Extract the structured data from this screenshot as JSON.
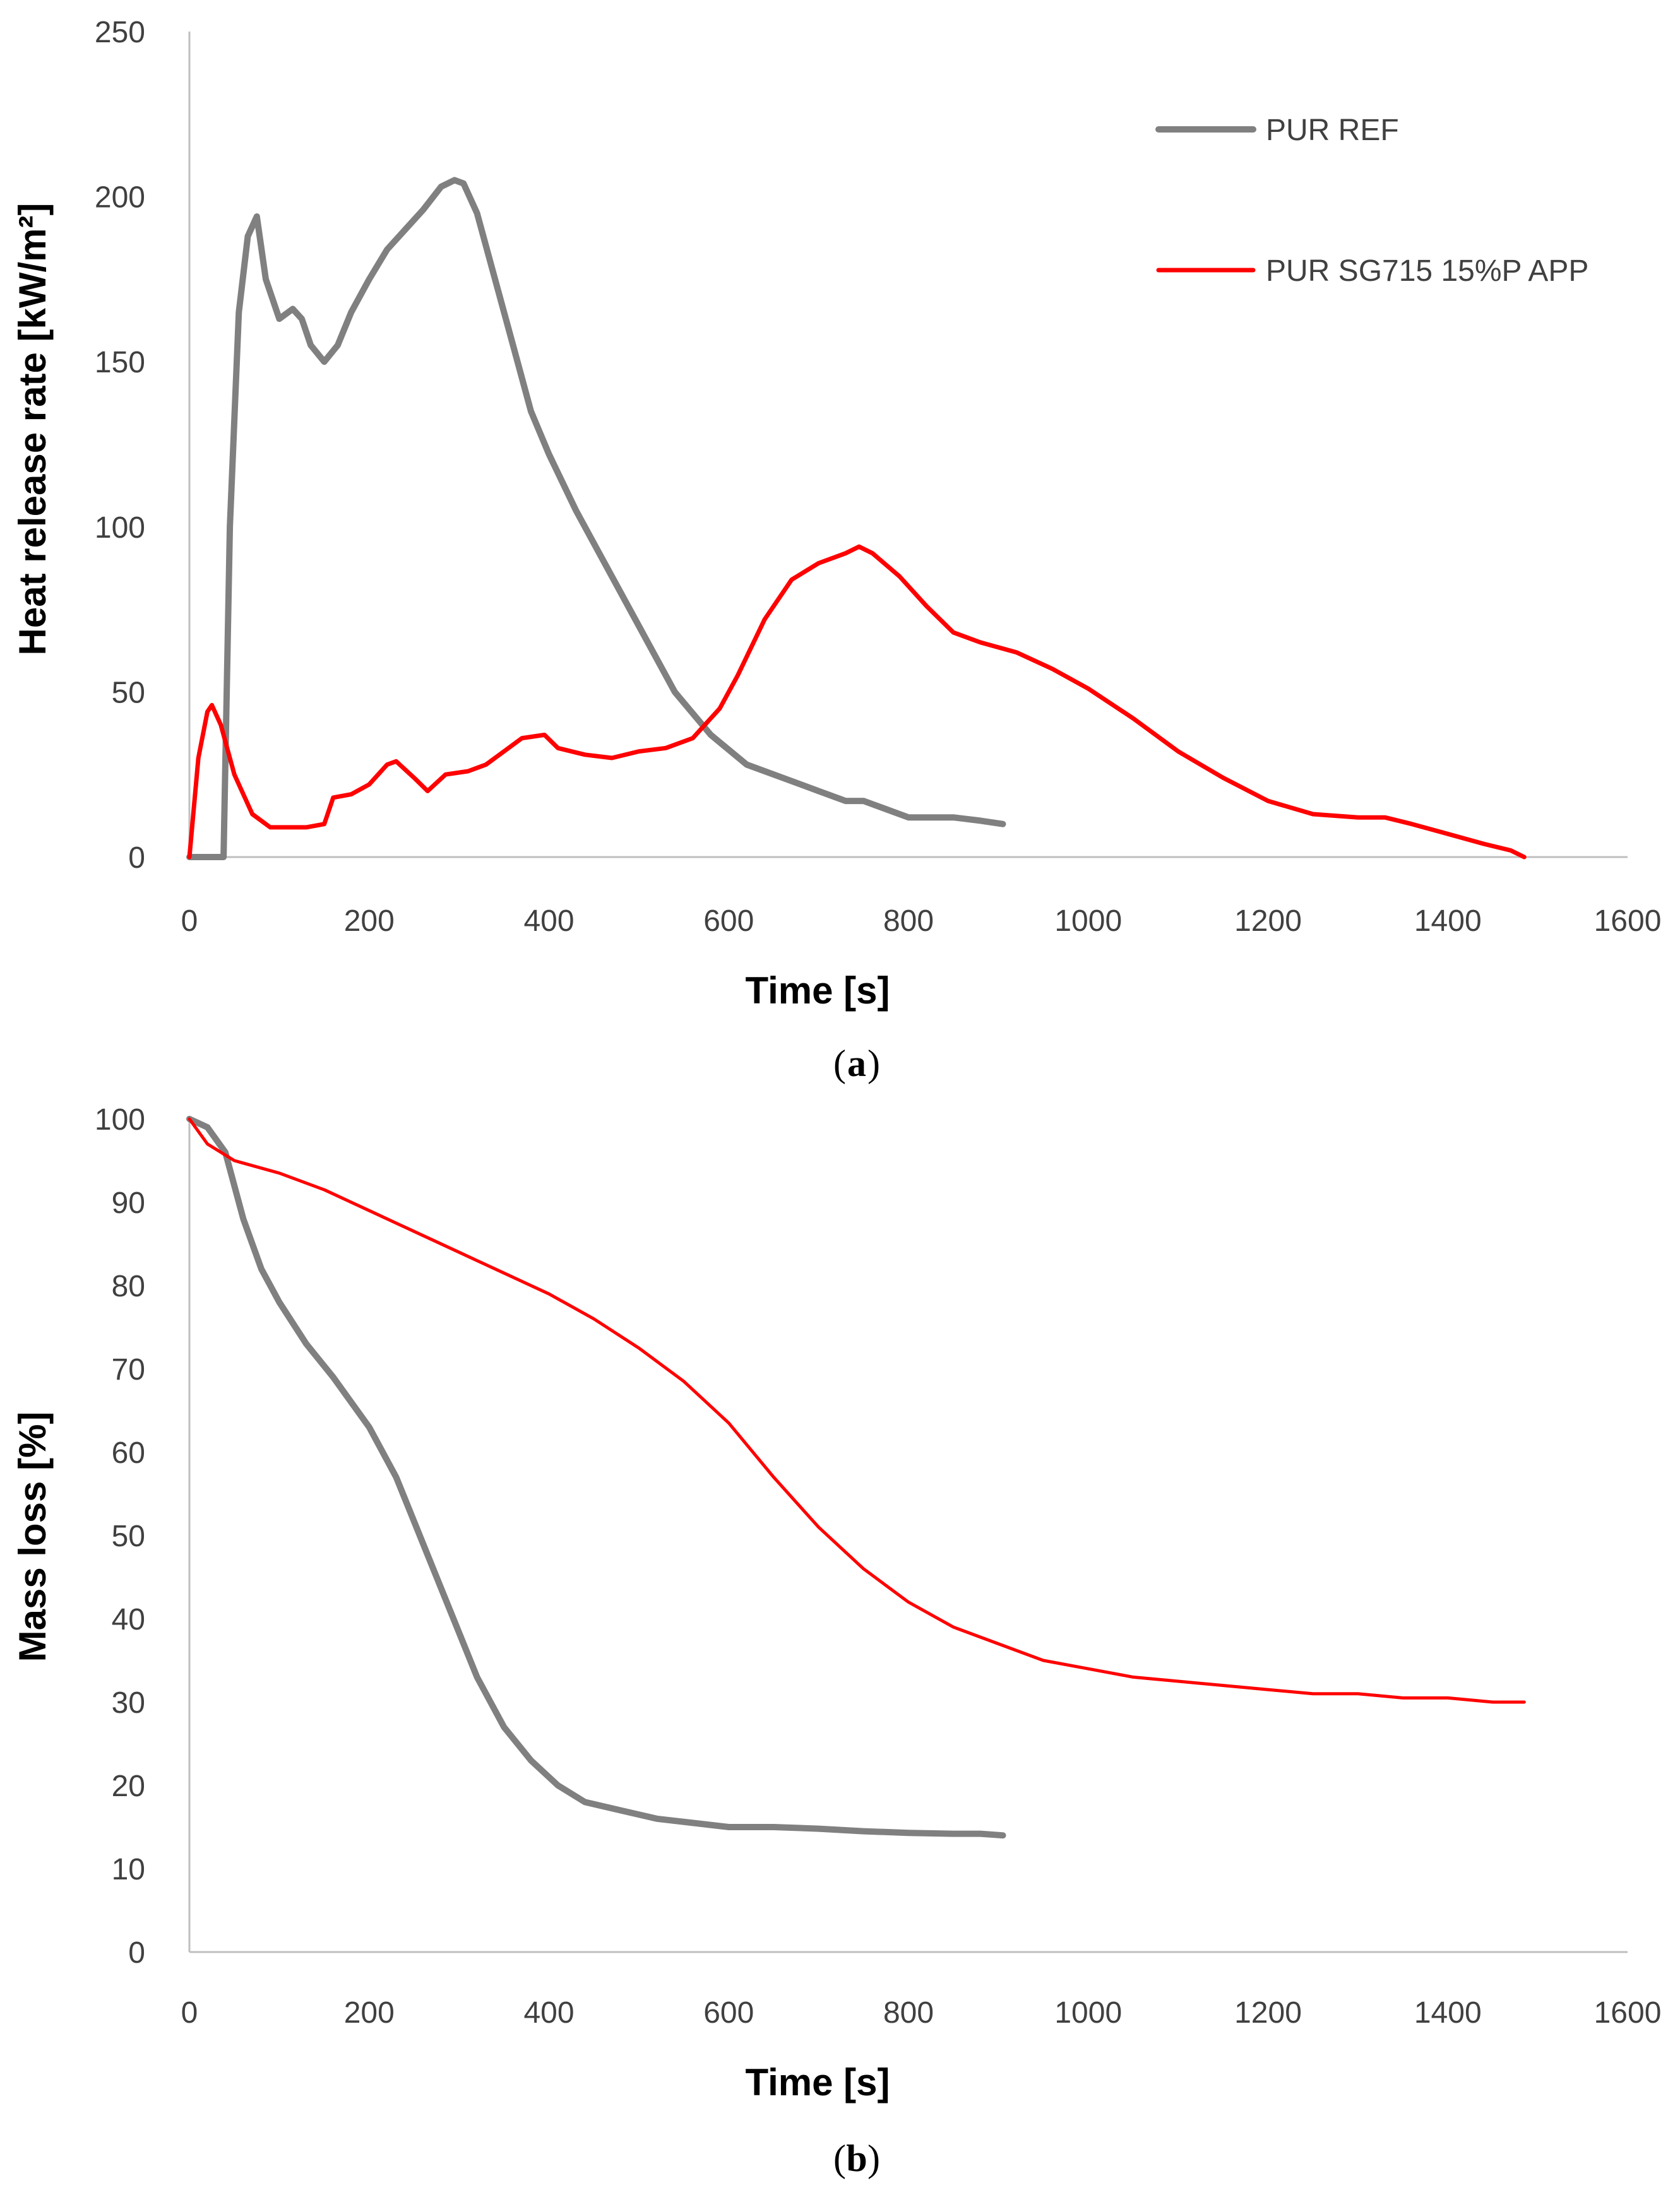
{
  "chart_data": [
    {
      "type": "line",
      "panel_label": "a",
      "xlabel": "Time [s]",
      "ylabel": "Heat release rate [kW/m²]",
      "xlim": [
        0,
        1600
      ],
      "ylim": [
        0,
        250
      ],
      "xticks": [
        0,
        200,
        400,
        600,
        800,
        1000,
        1200,
        1400,
        1600
      ],
      "yticks": [
        0,
        50,
        100,
        150,
        200,
        250
      ],
      "legend": "top-right",
      "series": [
        {
          "name": "PUR REF",
          "color": "#808080",
          "x": [
            0,
            30,
            38,
            45,
            55,
            65,
            75,
            85,
            100,
            115,
            125,
            135,
            150,
            165,
            180,
            200,
            220,
            240,
            260,
            280,
            295,
            305,
            320,
            340,
            360,
            380,
            400,
            430,
            460,
            500,
            540,
            580,
            620,
            660,
            700,
            730,
            750,
            770,
            800,
            850,
            880,
            905
          ],
          "values": [
            0,
            0,
            0,
            100,
            165,
            188,
            194,
            175,
            163,
            166,
            163,
            155,
            150,
            155,
            165,
            175,
            184,
            190,
            196,
            203,
            205,
            204,
            195,
            175,
            155,
            135,
            122,
            105,
            90,
            70,
            50,
            37,
            28,
            24,
            20,
            17,
            17,
            15,
            12,
            12,
            11,
            10
          ]
        },
        {
          "name": "PUR SG715 15%P APP",
          "color": "#ff0000",
          "x": [
            0,
            10,
            20,
            25,
            35,
            50,
            70,
            90,
            110,
            130,
            150,
            160,
            180,
            200,
            220,
            230,
            250,
            265,
            285,
            310,
            330,
            350,
            370,
            395,
            410,
            440,
            470,
            500,
            530,
            560,
            590,
            610,
            640,
            670,
            700,
            730,
            745,
            760,
            790,
            820,
            850,
            880,
            920,
            960,
            1000,
            1050,
            1100,
            1150,
            1200,
            1250,
            1300,
            1330,
            1360,
            1400,
            1440,
            1470,
            1485
          ],
          "values": [
            0,
            30,
            44,
            46,
            40,
            25,
            13,
            9,
            9,
            9,
            10,
            18,
            19,
            22,
            28,
            29,
            24,
            20,
            25,
            26,
            28,
            32,
            36,
            37,
            33,
            31,
            30,
            32,
            33,
            36,
            45,
            55,
            72,
            84,
            89,
            92,
            94,
            92,
            85,
            76,
            68,
            65,
            62,
            57,
            51,
            42,
            32,
            24,
            17,
            13,
            12,
            12,
            10,
            7,
            4,
            2,
            0
          ]
        }
      ]
    },
    {
      "type": "line",
      "panel_label": "b",
      "xlabel": "Time [s]",
      "ylabel": "Mass loss [%]",
      "xlim": [
        0,
        1600
      ],
      "ylim": [
        0,
        100
      ],
      "xticks": [
        0,
        200,
        400,
        600,
        800,
        1000,
        1200,
        1400,
        1600
      ],
      "yticks": [
        0,
        10,
        20,
        30,
        40,
        50,
        60,
        70,
        80,
        90,
        100
      ],
      "series": [
        {
          "name": "PUR REF",
          "color": "#808080",
          "x": [
            0,
            20,
            40,
            60,
            80,
            100,
            130,
            160,
            200,
            230,
            260,
            290,
            320,
            350,
            380,
            410,
            440,
            480,
            520,
            560,
            600,
            650,
            700,
            750,
            800,
            850,
            880,
            905
          ],
          "values": [
            100,
            99,
            96,
            88,
            82,
            78,
            73,
            69,
            63,
            57,
            49,
            41,
            33,
            27,
            23,
            20,
            18,
            17,
            16,
            15.5,
            15,
            15,
            14.8,
            14.5,
            14.3,
            14.2,
            14.2,
            14
          ],
          "stroke_width": 10
        },
        {
          "name": "PUR SG715 15%P APP",
          "color": "#ff0000",
          "x": [
            0,
            20,
            50,
            100,
            150,
            200,
            250,
            300,
            350,
            400,
            450,
            500,
            550,
            600,
            650,
            700,
            750,
            800,
            850,
            900,
            950,
            1000,
            1050,
            1100,
            1150,
            1200,
            1250,
            1300,
            1350,
            1400,
            1450,
            1485
          ],
          "values": [
            100,
            97,
            95,
            93.5,
            91.5,
            89,
            86.5,
            84,
            81.5,
            79,
            76,
            72.5,
            68.5,
            63.5,
            57,
            51,
            46,
            42,
            39,
            37,
            35,
            34,
            33,
            32.5,
            32,
            31.5,
            31,
            31,
            30.5,
            30.5,
            30,
            30
          ],
          "stroke_width": 5
        }
      ]
    }
  ]
}
